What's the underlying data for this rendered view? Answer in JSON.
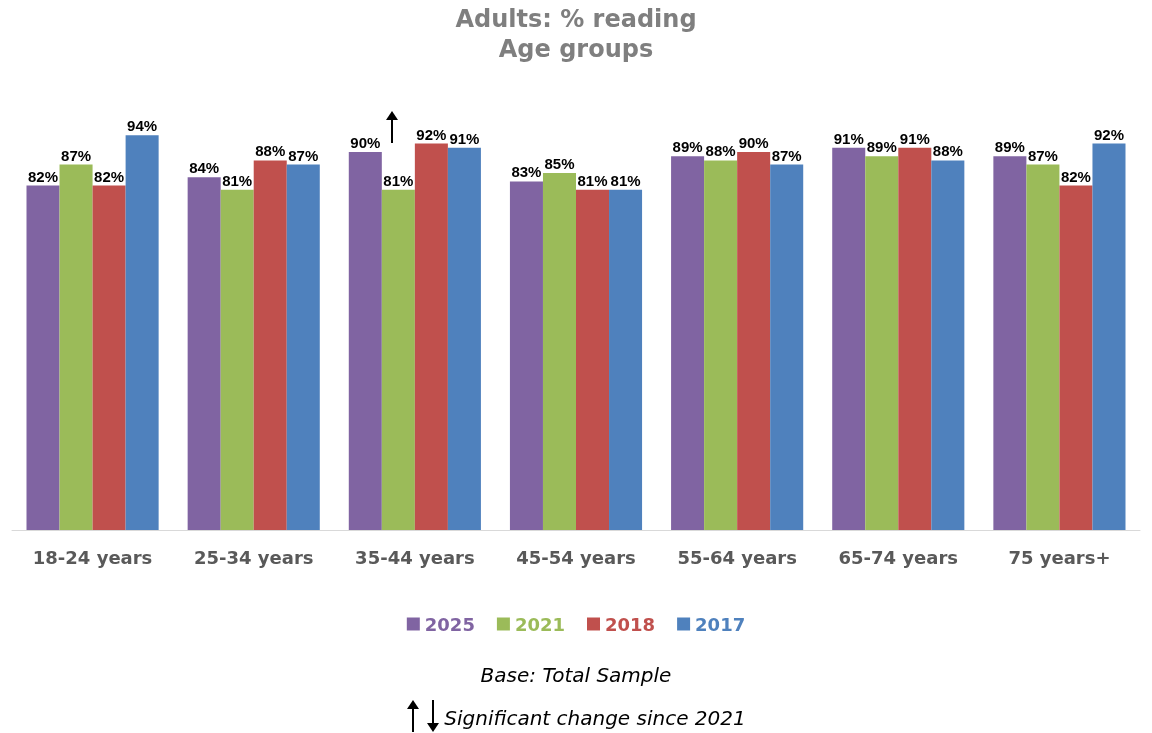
{
  "chart_data": {
    "type": "bar",
    "title": "Adults: % reading",
    "subtitle": "Age groups",
    "categories": [
      "18-24 years",
      "25-34 years",
      "35-44 years",
      "45-54 years",
      "55-64 years",
      "65-74 years",
      "75 years+"
    ],
    "series": [
      {
        "name": "2025",
        "color": "#8064a2",
        "values": [
          82,
          84,
          90,
          83,
          89,
          91,
          89
        ],
        "value_labels": [
          "82%",
          "84%",
          "90%",
          "83%",
          "89%",
          "91%",
          "89%"
        ]
      },
      {
        "name": "2021",
        "color": "#9bbb59",
        "values": [
          87,
          81,
          81,
          85,
          88,
          89,
          87
        ],
        "value_labels": [
          "87%",
          "81%",
          "81%",
          "85%",
          "88%",
          "89%",
          "87%"
        ]
      },
      {
        "name": "2018",
        "color": "#c0504d",
        "values": [
          82,
          88,
          92,
          81,
          90,
          91,
          82
        ],
        "value_labels": [
          "82%",
          "88%",
          "92%",
          "81%",
          "90%",
          "91%",
          "82%"
        ]
      },
      {
        "name": "2017",
        "color": "#4f81bd",
        "values": [
          94,
          87,
          91,
          81,
          87,
          88,
          92
        ],
        "value_labels": [
          "94%",
          "87%",
          "91%",
          "81%",
          "87%",
          "88%",
          "92%"
        ]
      }
    ],
    "tick_labels": "x",
    "grid": false,
    "legend": "bottom",
    "annotations": [
      "Base: Total Sample",
      "Significant change since 2021"
    ]
  }
}
